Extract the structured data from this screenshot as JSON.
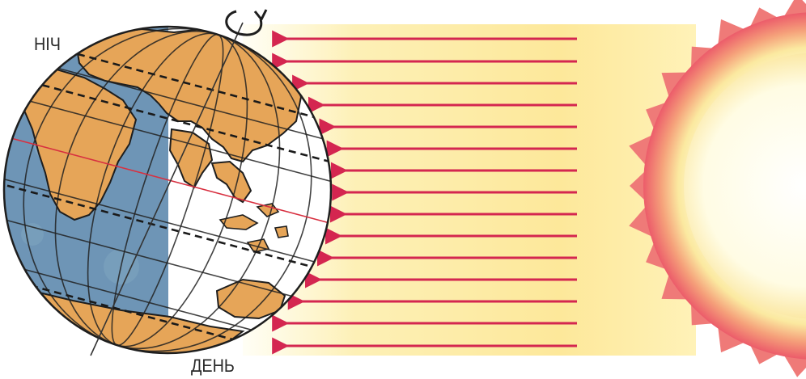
{
  "labels": {
    "night": "НІЧ",
    "day": "ДЕНЬ"
  },
  "colors": {
    "ocean_night": "#6c93b4",
    "ocean_day": "#ffffff",
    "land": "#e6a558",
    "land_outline": "#1e1e1e",
    "arrow": "#d42650",
    "sun_core": "#fffbe0",
    "sun_corona": "#ef6f6f",
    "light_beam": "#fde89a"
  },
  "icons": {
    "rotation": "rotation-arrow-icon",
    "sun": "sun-icon"
  }
}
